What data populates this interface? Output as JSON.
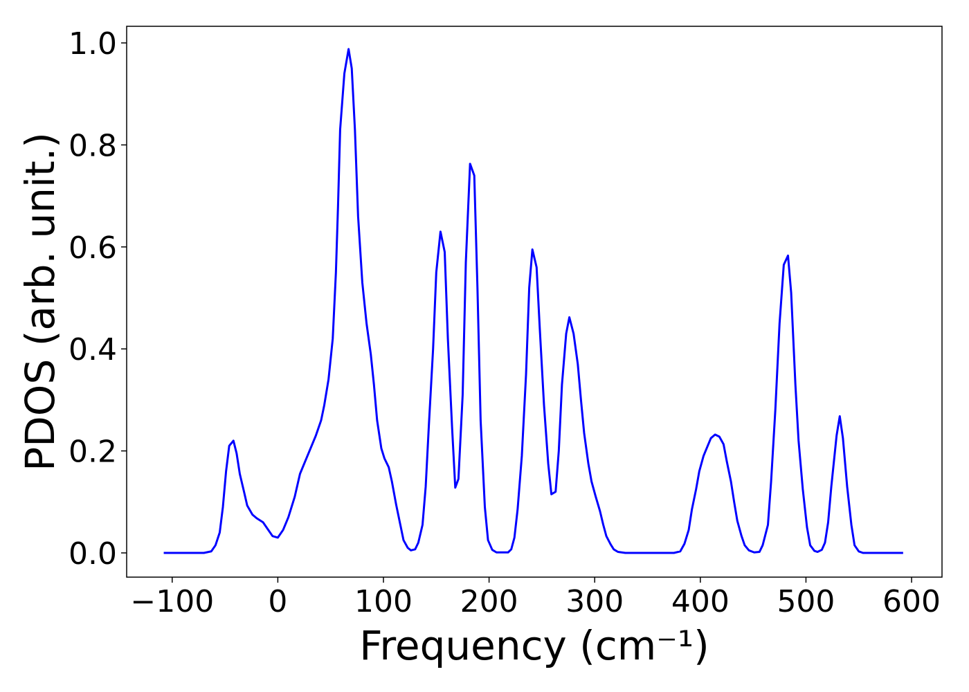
{
  "chart_data": {
    "type": "line",
    "xlabel": "Frequency (cm⁻¹)",
    "ylabel": "PDOS (arb. unit.)",
    "x": [
      -108,
      -70,
      -63,
      -59,
      -55,
      -52,
      -49,
      -46,
      -42,
      -39,
      -36,
      -32,
      -29,
      -24,
      -20,
      -14,
      -10,
      -5,
      0,
      5,
      10,
      16,
      21,
      26,
      31,
      36,
      41,
      44,
      48,
      52,
      55,
      57,
      59,
      63,
      67,
      70,
      73,
      76,
      80,
      84,
      88,
      91,
      94,
      98,
      101,
      105,
      108,
      112,
      116,
      119,
      123,
      126,
      130,
      133,
      137,
      140,
      143,
      147,
      150,
      154,
      158,
      161,
      165,
      168,
      171,
      175,
      178,
      182,
      186,
      189,
      192,
      196,
      199,
      203,
      207,
      218,
      221,
      224,
      227,
      231,
      235,
      238,
      241,
      245,
      248,
      252,
      256,
      259,
      263,
      266,
      269,
      273,
      276,
      280,
      284,
      287,
      290,
      294,
      297,
      301,
      305,
      308,
      311,
      315,
      318,
      322,
      329,
      375,
      381,
      385,
      389,
      392,
      396,
      399,
      403,
      407,
      410,
      414,
      418,
      422,
      425,
      429,
      432,
      435,
      439,
      442,
      446,
      451,
      456,
      459,
      464,
      467,
      471,
      475,
      479,
      483,
      486,
      490,
      493,
      497,
      501,
      504,
      508,
      511,
      515,
      518,
      521,
      524,
      529,
      532,
      535,
      539,
      543,
      546,
      550,
      554,
      592
    ],
    "series": [
      {
        "name": "PDOS",
        "color": "#0000ff",
        "values": [
          0,
          0,
          0.003,
          0.015,
          0.04,
          0.09,
          0.16,
          0.21,
          0.22,
          0.195,
          0.155,
          0.12,
          0.093,
          0.075,
          0.068,
          0.06,
          0.048,
          0.033,
          0.03,
          0.045,
          0.07,
          0.11,
          0.155,
          0.18,
          0.205,
          0.23,
          0.26,
          0.29,
          0.34,
          0.42,
          0.55,
          0.68,
          0.83,
          0.94,
          0.988,
          0.95,
          0.83,
          0.66,
          0.53,
          0.45,
          0.39,
          0.33,
          0.26,
          0.205,
          0.185,
          0.168,
          0.14,
          0.095,
          0.055,
          0.025,
          0.01,
          0.005,
          0.007,
          0.02,
          0.055,
          0.13,
          0.25,
          0.4,
          0.55,
          0.63,
          0.59,
          0.42,
          0.245,
          0.128,
          0.145,
          0.31,
          0.57,
          0.763,
          0.74,
          0.52,
          0.26,
          0.09,
          0.025,
          0.006,
          0.001,
          0.001,
          0.007,
          0.03,
          0.085,
          0.19,
          0.35,
          0.52,
          0.595,
          0.56,
          0.44,
          0.29,
          0.175,
          0.115,
          0.12,
          0.2,
          0.33,
          0.43,
          0.462,
          0.43,
          0.37,
          0.3,
          0.235,
          0.175,
          0.14,
          0.11,
          0.082,
          0.056,
          0.033,
          0.017,
          0.007,
          0.002,
          0,
          0,
          0.003,
          0.018,
          0.045,
          0.085,
          0.125,
          0.16,
          0.19,
          0.21,
          0.225,
          0.232,
          0.228,
          0.213,
          0.18,
          0.14,
          0.1,
          0.063,
          0.033,
          0.015,
          0.005,
          0.001,
          0.002,
          0.015,
          0.055,
          0.14,
          0.28,
          0.45,
          0.565,
          0.583,
          0.51,
          0.33,
          0.22,
          0.125,
          0.05,
          0.015,
          0.004,
          0.002,
          0.006,
          0.02,
          0.06,
          0.13,
          0.23,
          0.268,
          0.225,
          0.13,
          0.055,
          0.015,
          0.003,
          0,
          0
        ]
      }
    ],
    "xlim": [
      -143.1,
      628.8
    ],
    "ylim": [
      -0.0475,
      1.0326
    ],
    "xticks": [
      {
        "value": -100,
        "label": "−100"
      },
      0,
      100,
      200,
      300,
      400,
      500,
      600
    ],
    "yticks": [
      {
        "value": 0,
        "label": "0.0"
      },
      0.2,
      0.4,
      0.6,
      0.8,
      {
        "value": 1,
        "label": "1.0"
      }
    ],
    "grid": false
  }
}
